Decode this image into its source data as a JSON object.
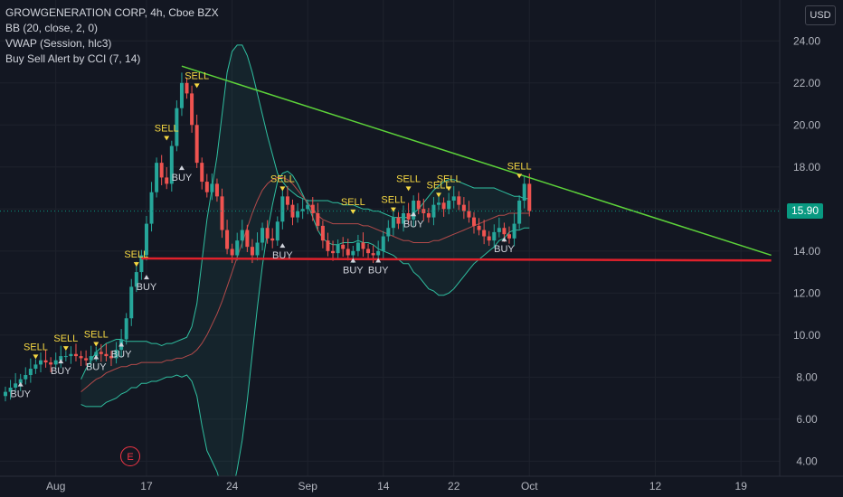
{
  "legend": {
    "symbol": "GROWGENERATION CORP, 4h, Cboe BZX",
    "bb": "BB (20, close, 2, 0)",
    "vwap": "VWAP (Session, hlc3)",
    "cci": "Buy Sell Alert by CCI (7, 14)"
  },
  "currency_label": "USD",
  "event_marker": "E",
  "colors": {
    "background": "#131722",
    "up": "#26a69a",
    "down": "#ef5350",
    "bb_band": "#2fbfa0",
    "basis": "#b24a4a",
    "trend_down": "#5dd33a",
    "support": "#e0212b",
    "signal_text": "#f5d742",
    "buy_text": "#d1d4dc"
  },
  "chart_data": {
    "type": "candlestick",
    "last_price": "15.90",
    "y_ticks": [
      "24.00",
      "22.00",
      "20.00",
      "18.00",
      "16.00",
      "14.00",
      "12.00",
      "10.00",
      "8.00",
      "6.00",
      "4.00"
    ],
    "ylim": [
      3.5,
      25
    ],
    "x_ticks": [
      {
        "label": "Aug",
        "idx": 10
      },
      {
        "label": "17",
        "idx": 28
      },
      {
        "label": "24",
        "idx": 45
      },
      {
        "label": "Sep",
        "idx": 60
      },
      {
        "label": "14",
        "idx": 75
      },
      {
        "label": "22",
        "idx": 89
      },
      {
        "label": "Oct",
        "idx": 104
      },
      {
        "label": "12",
        "idx": 129
      },
      {
        "label": "19",
        "idx": 146
      }
    ],
    "close": [
      7.3,
      7.5,
      7.7,
      7.9,
      8.1,
      8.4,
      8.6,
      8.8,
      8.7,
      8.6,
      8.8,
      9.0,
      9.0,
      9.1,
      9.0,
      8.9,
      8.8,
      9.0,
      9.2,
      9.1,
      9.0,
      8.9,
      9.3,
      9.8,
      10.8,
      12.3,
      13.0,
      13.8,
      15.3,
      16.8,
      18.2,
      17.5,
      17.2,
      19.0,
      20.8,
      22.0,
      21.5,
      20.0,
      18.2,
      17.3,
      16.8,
      17.2,
      16.6,
      15.0,
      14.1,
      13.8,
      14.5,
      15.0,
      14.2,
      13.8,
      14.4,
      15.1,
      14.6,
      14.5,
      15.4,
      16.6,
      16.2,
      15.6,
      15.9,
      16.0,
      16.2,
      15.8,
      15.2,
      14.5,
      14.0,
      13.9,
      14.3,
      14.1,
      13.8,
      14.0,
      14.4,
      14.1,
      13.9,
      13.8,
      14.0,
      14.7,
      15.1,
      15.6,
      15.3,
      15.8,
      15.5,
      16.4,
      16.0,
      15.8,
      15.6,
      16.2,
      16.3,
      16.0,
      16.4,
      16.6,
      16.2,
      15.9,
      15.6,
      15.2,
      15.0,
      14.7,
      14.5,
      14.9,
      15.1,
      14.8,
      14.6,
      15.3,
      16.4,
      17.2,
      15.9
    ],
    "bb_upper": [
      7.9,
      8.4,
      8.8,
      9.2,
      9.4,
      9.6,
      9.7,
      9.8,
      9.8,
      9.7,
      9.7,
      9.7,
      9.7,
      9.7,
      9.6,
      9.6,
      9.5,
      9.6,
      9.6,
      9.7,
      9.8,
      9.9,
      10.4,
      11.5,
      13.5,
      15.5,
      17.0,
      18.5,
      20.5,
      22.5,
      23.5,
      23.8,
      23.8,
      23.3,
      22.5,
      21.5,
      20.5,
      19.5,
      18.6,
      17.7,
      17.3,
      17.0,
      16.8,
      16.6,
      16.5,
      16.4,
      16.4,
      16.4,
      16.4,
      16.4,
      16.3,
      16.3,
      16.2,
      16.2,
      16.2,
      16.1,
      16.0,
      16.0,
      15.9,
      15.9,
      15.8,
      15.7,
      15.6,
      15.6,
      15.6,
      15.6,
      15.8,
      16.0,
      16.3,
      16.6,
      16.9,
      17.1,
      17.3,
      17.4,
      17.4,
      17.3,
      17.2,
      17.1,
      17.0,
      17.0,
      17.0,
      17.0,
      17.0,
      16.9,
      16.8,
      16.7,
      16.6,
      16.6,
      16.5,
      16.5
    ],
    "bb_basis": [
      7.3,
      7.5,
      7.7,
      7.9,
      8.0,
      8.2,
      8.3,
      8.4,
      8.5,
      8.5,
      8.6,
      8.6,
      8.7,
      8.7,
      8.7,
      8.7,
      8.7,
      8.8,
      8.8,
      8.9,
      8.9,
      9.0,
      9.1,
      9.3,
      9.6,
      10.0,
      10.5,
      11.0,
      11.6,
      12.3,
      13.0,
      13.7,
      14.4,
      15.1,
      15.8,
      16.4,
      16.9,
      17.2,
      17.4,
      17.5,
      17.5,
      17.4,
      17.2,
      16.9,
      16.6,
      16.3,
      16.0,
      15.7,
      15.5,
      15.4,
      15.3,
      15.3,
      15.3,
      15.3,
      15.3,
      15.3,
      15.2,
      15.2,
      15.1,
      15.0,
      14.9,
      14.8,
      14.7,
      14.6,
      14.5,
      14.5,
      14.4,
      14.4,
      14.4,
      14.4,
      14.5,
      14.5,
      14.6,
      14.7,
      14.8,
      14.9,
      15.0,
      15.1,
      15.2,
      15.3,
      15.4,
      15.5,
      15.6,
      15.7,
      15.7,
      15.8,
      15.8,
      15.8,
      15.8,
      15.8
    ],
    "bb_lower": [
      6.7,
      6.6,
      6.6,
      6.6,
      6.6,
      6.8,
      6.9,
      7.0,
      7.2,
      7.3,
      7.5,
      7.5,
      7.7,
      7.7,
      7.8,
      7.8,
      7.9,
      8.0,
      8.0,
      8.1,
      8.0,
      8.1,
      7.8,
      7.1,
      5.7,
      4.5,
      4.0,
      3.5,
      2.7,
      2.1,
      2.5,
      3.6,
      5.0,
      6.9,
      9.1,
      11.3,
      13.3,
      14.9,
      16.2,
      17.3,
      17.7,
      17.8,
      17.6,
      17.2,
      16.7,
      16.2,
      15.6,
      15.0,
      14.6,
      14.4,
      14.3,
      14.3,
      14.4,
      14.4,
      14.4,
      14.5,
      14.4,
      14.4,
      14.3,
      14.1,
      14.0,
      13.9,
      13.8,
      13.6,
      13.4,
      13.4,
      13.0,
      12.8,
      12.5,
      12.2,
      12.1,
      11.9,
      11.9,
      12.0,
      12.2,
      12.5,
      12.8,
      13.1,
      13.4,
      13.6,
      13.8,
      14.0,
      14.2,
      14.5,
      14.6,
      14.9,
      15.0,
      15.0,
      15.1,
      15.1
    ],
    "bb_offset": 15,
    "trendline_down": {
      "from": {
        "idx": 35,
        "y": 22.8
      },
      "to": {
        "idx": 152,
        "y": 13.8
      }
    },
    "support_line": {
      "from": {
        "idx": 27,
        "y": 13.65
      },
      "to": {
        "idx": 152,
        "y": 13.55
      }
    },
    "signals": [
      {
        "type": "SELL",
        "idx": 6,
        "y": 8.6
      },
      {
        "type": "BUY",
        "idx": 3,
        "y": 7.9
      },
      {
        "type": "SELL",
        "idx": 12,
        "y": 9.0
      },
      {
        "type": "BUY",
        "idx": 11,
        "y": 9.0
      },
      {
        "type": "SELL",
        "idx": 18,
        "y": 9.2
      },
      {
        "type": "BUY",
        "idx": 18,
        "y": 9.2
      },
      {
        "type": "BUY",
        "idx": 23,
        "y": 9.8
      },
      {
        "type": "SELL",
        "idx": 26,
        "y": 13.0
      },
      {
        "type": "BUY",
        "idx": 28,
        "y": 13.0
      },
      {
        "type": "SELL",
        "idx": 32,
        "y": 19.0
      },
      {
        "type": "BUY",
        "idx": 35,
        "y": 18.2
      },
      {
        "type": "SELL",
        "idx": 38,
        "y": 21.5
      },
      {
        "type": "SELL",
        "idx": 55,
        "y": 16.6
      },
      {
        "type": "BUY",
        "idx": 55,
        "y": 14.5
      },
      {
        "type": "SELL",
        "idx": 69,
        "y": 15.5
      },
      {
        "type": "BUY",
        "idx": 69,
        "y": 13.8
      },
      {
        "type": "BUY",
        "idx": 74,
        "y": 13.8
      },
      {
        "type": "SELL",
        "idx": 77,
        "y": 15.6
      },
      {
        "type": "SELL",
        "idx": 80,
        "y": 16.6
      },
      {
        "type": "BUY",
        "idx": 81,
        "y": 16.0
      },
      {
        "type": "SELL",
        "idx": 86,
        "y": 16.3
      },
      {
        "type": "SELL",
        "idx": 88,
        "y": 16.6
      },
      {
        "type": "BUY",
        "idx": 99,
        "y": 14.8
      },
      {
        "type": "SELL",
        "idx": 102,
        "y": 17.2
      }
    ]
  }
}
